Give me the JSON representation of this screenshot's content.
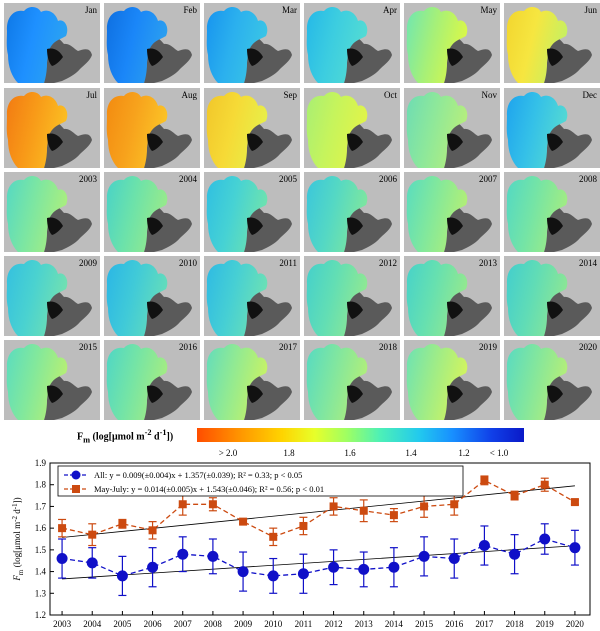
{
  "maps": {
    "tiles": [
      {
        "label": "Jan",
        "colors": [
          "#0e78e6",
          "#1e90ff",
          "#2aa2f2"
        ]
      },
      {
        "label": "Feb",
        "colors": [
          "#0e6fe0",
          "#1a86f8",
          "#2a9ef0"
        ]
      },
      {
        "label": "Mar",
        "colors": [
          "#1794ef",
          "#2bb0ee",
          "#39c4e6"
        ]
      },
      {
        "label": "Apr",
        "colors": [
          "#25b8e8",
          "#3ccde0",
          "#52dbd4"
        ]
      },
      {
        "label": "May",
        "colors": [
          "#6fe6b2",
          "#a6f078",
          "#d8f84a"
        ]
      },
      {
        "label": "Jun",
        "colors": [
          "#f2d52e",
          "#f6e640",
          "#c8f060"
        ]
      },
      {
        "label": "Jul",
        "colors": [
          "#f27a12",
          "#f89a18",
          "#fbbd22"
        ]
      },
      {
        "label": "Aug",
        "colors": [
          "#f38a10",
          "#f7a21c",
          "#fbc226"
        ]
      },
      {
        "label": "Sep",
        "colors": [
          "#f1c62a",
          "#f6da36",
          "#e8ee48"
        ]
      },
      {
        "label": "Oct",
        "colors": [
          "#a8ef74",
          "#c6f45c",
          "#e0f44a"
        ]
      },
      {
        "label": "Nov",
        "colors": [
          "#6ddcb4",
          "#8ee89a",
          "#b4ee7e"
        ]
      },
      {
        "label": "Dec",
        "colors": [
          "#1ea3ee",
          "#34c0e8",
          "#52d8d4"
        ]
      },
      {
        "label": "2003",
        "colors": [
          "#54d8c4",
          "#7ce6a2",
          "#a8ee80"
        ]
      },
      {
        "label": "2004",
        "colors": [
          "#48d2c8",
          "#6ce2aa",
          "#96ea8c"
        ]
      },
      {
        "label": "2005",
        "colors": [
          "#2fbfe2",
          "#46d2d4",
          "#6ce2b0"
        ]
      },
      {
        "label": "2006",
        "colors": [
          "#3ac6dc",
          "#54d8c4",
          "#7ce6a0"
        ]
      },
      {
        "label": "2007",
        "colors": [
          "#58dcc0",
          "#82e89c",
          "#b0ef78"
        ]
      },
      {
        "label": "2008",
        "colors": [
          "#52d8c4",
          "#74e4a6",
          "#a0ec84"
        ]
      },
      {
        "label": "2009",
        "colors": [
          "#34c0e0",
          "#4ad2d0",
          "#70e0b2"
        ]
      },
      {
        "label": "2010",
        "colors": [
          "#2ab6e6",
          "#40cad8",
          "#62dcbc"
        ]
      },
      {
        "label": "2011",
        "colors": [
          "#2ebae4",
          "#46cfd4",
          "#6ae0b6"
        ]
      },
      {
        "label": "2012",
        "colors": [
          "#44d0cc",
          "#62deb4",
          "#8ee894"
        ]
      },
      {
        "label": "2013",
        "colors": [
          "#46d2ca",
          "#66e0b0",
          "#92e890"
        ]
      },
      {
        "label": "2014",
        "colors": [
          "#42cece",
          "#60dcb6",
          "#8ae696"
        ]
      },
      {
        "label": "2015",
        "colors": [
          "#5adcc0",
          "#82e89c",
          "#b4ef76"
        ]
      },
      {
        "label": "2016",
        "colors": [
          "#4ed6c6",
          "#74e4a6",
          "#a2ec84"
        ]
      },
      {
        "label": "2017",
        "colors": [
          "#62dcbc",
          "#92ea92",
          "#c4f268"
        ]
      },
      {
        "label": "2018",
        "colors": [
          "#56dac2",
          "#80e6a0",
          "#aeee7c"
        ]
      },
      {
        "label": "2019",
        "colors": [
          "#6ce2b4",
          "#9eec88",
          "#d0f460"
        ]
      },
      {
        "label": "2020",
        "colors": [
          "#58dac2",
          "#82e69e",
          "#b2ee7a"
        ]
      }
    ],
    "land_color": "#5a5a5a",
    "island_color": "#111111",
    "background_color": "#bdbdbd"
  },
  "colorbar": {
    "title_main": "F",
    "title_sub": "m",
    "title_rest": " (log[μmol m",
    "title_sup1": "-2",
    "title_mid": " d",
    "title_sup2": "-1",
    "title_end": "])",
    "ticks": [
      "> 2.0",
      "1.8",
      "1.6",
      "1.4",
      "1.2",
      "< 1.0"
    ]
  },
  "chart_data": {
    "type": "line",
    "x": [
      2003,
      2004,
      2005,
      2006,
      2007,
      2008,
      2009,
      2010,
      2011,
      2012,
      2013,
      2014,
      2015,
      2016,
      2017,
      2018,
      2019,
      2020
    ],
    "xlim": [
      2002.6,
      2020.5
    ],
    "ylim": [
      1.2,
      1.9
    ],
    "yticks": [
      "1.2",
      "1.3",
      "1.4",
      "1.5",
      "1.6",
      "1.7",
      "1.8",
      "1.9"
    ],
    "ylabel_main": "F",
    "ylabel_sub": "m",
    "ylabel_rest": " (log[μmol m",
    "ylabel_sup1": "-2",
    "ylabel_mid": " d",
    "ylabel_sup2": "-1",
    "ylabel_end": "])",
    "series": [
      {
        "name": "All",
        "legend_label": "All: y = 0.009(±0.004)x + 1.357(±0.039);  R² = 0.33; p < 0.05",
        "color": "#1010c8",
        "marker": "circle",
        "values": [
          1.46,
          1.44,
          1.38,
          1.42,
          1.48,
          1.47,
          1.4,
          1.38,
          1.39,
          1.42,
          1.41,
          1.42,
          1.47,
          1.46,
          1.52,
          1.48,
          1.55,
          1.51
        ],
        "errors": [
          0.09,
          0.07,
          0.09,
          0.09,
          0.08,
          0.08,
          0.09,
          0.08,
          0.09,
          0.08,
          0.08,
          0.09,
          0.09,
          0.09,
          0.09,
          0.09,
          0.07,
          0.08
        ],
        "trend": {
          "slope": 0.009,
          "intercept": 1.357
        }
      },
      {
        "name": "May-July",
        "legend_label": "May-July: y = 0.014(±0.005)x + 1.543(±0.046);  R² = 0.56; p < 0.01",
        "color": "#cc4a10",
        "marker": "square",
        "values": [
          1.6,
          1.57,
          1.62,
          1.59,
          1.71,
          1.71,
          1.63,
          1.56,
          1.61,
          1.7,
          1.68,
          1.66,
          1.7,
          1.71,
          1.82,
          1.75,
          1.8,
          1.72
        ],
        "errors": [
          0.04,
          0.05,
          0.02,
          0.04,
          0.05,
          0.03,
          0.01,
          0.04,
          0.04,
          0.04,
          0.05,
          0.03,
          0.05,
          0.05,
          0.02,
          0.02,
          0.03,
          0.01
        ],
        "trend": {
          "slope": 0.014,
          "intercept": 1.543
        }
      }
    ],
    "grid": false,
    "legend_position": "top-left"
  }
}
